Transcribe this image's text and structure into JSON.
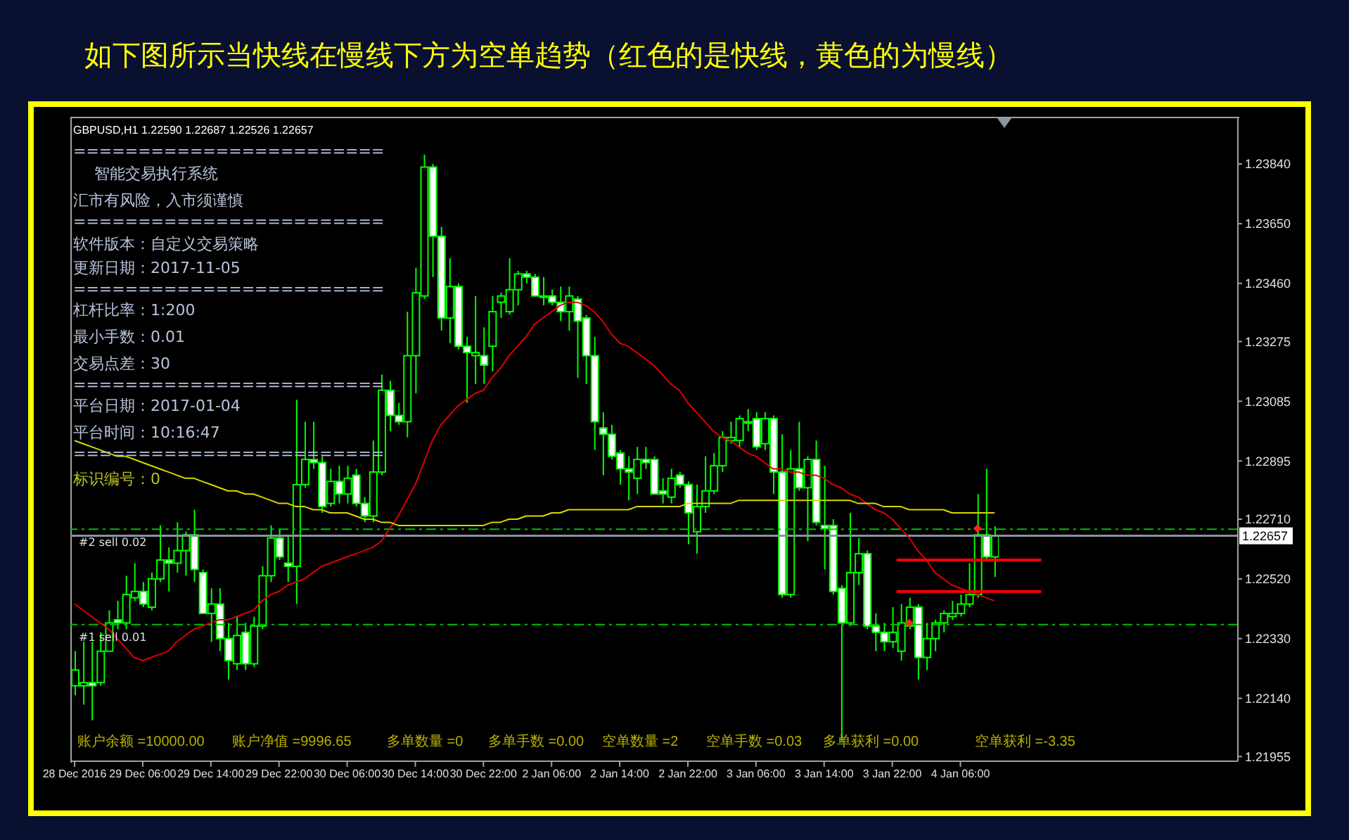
{
  "chart_data": {
    "type": "candlestick",
    "title": "如下图所示当快线在慢线下方为空单趋势（红色的是快线，黄色的为慢线）",
    "categories": [
      "28 Dec 2016",
      null,
      null,
      null,
      null,
      null,
      null,
      null,
      "29 Dec 06:00",
      null,
      null,
      null,
      null,
      null,
      null,
      null,
      "29 Dec 14:00",
      null,
      null,
      null,
      null,
      null,
      null,
      null,
      "29 Dec 22:00",
      null,
      null,
      null,
      null,
      null,
      null,
      null,
      "30 Dec 06:00",
      null,
      null,
      null,
      null,
      null,
      null,
      null,
      "30 Dec 14:00",
      null,
      null,
      null,
      null,
      null,
      null,
      null,
      "30 Dec 22:00",
      null,
      null,
      null,
      null,
      null,
      null,
      null,
      "2 Jan 06:00",
      null,
      null,
      null,
      null,
      null,
      null,
      null,
      "2 Jan 14:00",
      null,
      null,
      null,
      null,
      null,
      null,
      null,
      "2 Jan 22:00",
      null,
      null,
      null,
      null,
      null,
      null,
      null,
      "3 Jan 06:00",
      null,
      null,
      null,
      null,
      null,
      null,
      null,
      "3 Jan 14:00",
      null,
      null,
      null,
      null,
      null,
      null,
      null,
      "3 Jan 22:00",
      null,
      null,
      null,
      null,
      null,
      null,
      null,
      "4 Jan 06:00",
      null,
      null,
      null,
      null
    ],
    "color": "#00ff00",
    "ohlc": [
      [
        1.2218,
        1.2229,
        1.2215,
        1.2223
      ],
      [
        1.2218,
        1.2232,
        1.2212,
        1.2219
      ],
      [
        1.2219,
        1.2232,
        1.2207,
        1.2218
      ],
      [
        1.2219,
        1.2235,
        1.2218,
        1.2229
      ],
      [
        1.2229,
        1.2242,
        1.2229,
        1.2238
      ],
      [
        1.2239,
        1.2245,
        1.2236,
        1.2238
      ],
      [
        1.2238,
        1.2253,
        1.2236,
        1.2247
      ],
      [
        1.2246,
        1.2257,
        1.2245,
        1.2248
      ],
      [
        1.2248,
        1.2251,
        1.2243,
        1.2244
      ],
      [
        1.2243,
        1.2254,
        1.2242,
        1.2252
      ],
      [
        1.2252,
        1.2269,
        1.2251,
        1.2258
      ],
      [
        1.2258,
        1.2262,
        1.2248,
        1.2257
      ],
      [
        1.2257,
        1.227,
        1.2254,
        1.2261
      ],
      [
        1.2261,
        1.2267,
        1.2253,
        1.2266
      ],
      [
        1.2266,
        1.2274,
        1.2251,
        1.2255
      ],
      [
        1.2254,
        1.2255,
        1.2241,
        1.2241
      ],
      [
        1.2241,
        1.2249,
        1.2232,
        1.2244
      ],
      [
        1.2244,
        1.2249,
        1.2229,
        1.2233
      ],
      [
        1.2233,
        1.2238,
        1.222,
        1.2226
      ],
      [
        1.2225,
        1.224,
        1.2223,
        1.2234
      ],
      [
        1.2235,
        1.2238,
        1.2223,
        1.2225
      ],
      [
        1.2225,
        1.224,
        1.2224,
        1.2237
      ],
      [
        1.2237,
        1.2256,
        1.2236,
        1.2253
      ],
      [
        1.2253,
        1.2269,
        1.2251,
        1.2265
      ],
      [
        1.2265,
        1.2268,
        1.2258,
        1.2259
      ],
      [
        1.2257,
        1.2266,
        1.2251,
        1.2256
      ],
      [
        1.2256,
        1.2309,
        1.2244,
        1.2282
      ],
      [
        1.2282,
        1.2302,
        1.2281,
        1.229
      ],
      [
        1.229,
        1.2302,
        1.2287,
        1.2289
      ],
      [
        1.2289,
        1.2291,
        1.2273,
        1.2275
      ],
      [
        1.2276,
        1.2287,
        1.2275,
        1.2283
      ],
      [
        1.2283,
        1.2288,
        1.2276,
        1.2279
      ],
      [
        1.2279,
        1.2288,
        1.2276,
        1.2284
      ],
      [
        1.2285,
        1.2287,
        1.2275,
        1.2276
      ],
      [
        1.2276,
        1.2278,
        1.227,
        1.2272
      ],
      [
        1.2272,
        1.2296,
        1.227,
        1.2286
      ],
      [
        1.2286,
        1.2317,
        1.2285,
        1.2312
      ],
      [
        1.2312,
        1.2315,
        1.2299,
        1.2304
      ],
      [
        1.2304,
        1.2308,
        1.2301,
        1.2302
      ],
      [
        1.2302,
        1.2337,
        1.2297,
        1.2323
      ],
      [
        1.2323,
        1.2351,
        1.2311,
        1.2343
      ],
      [
        1.2342,
        1.2387,
        1.2341,
        1.2383
      ],
      [
        1.2383,
        1.2384,
        1.2348,
        1.2361
      ],
      [
        1.2361,
        1.2364,
        1.2331,
        1.2335
      ],
      [
        1.2335,
        1.2354,
        1.2327,
        1.2345
      ],
      [
        1.2345,
        1.2346,
        1.2325,
        1.2326
      ],
      [
        1.2326,
        1.2329,
        1.2308,
        1.2324
      ],
      [
        1.2323,
        1.2342,
        1.2314,
        1.2324
      ],
      [
        1.2323,
        1.2332,
        1.2314,
        1.232
      ],
      [
        1.2326,
        1.2342,
        1.2318,
        1.2337
      ],
      [
        1.234,
        1.2343,
        1.2335,
        1.2342
      ],
      [
        1.2337,
        1.2354,
        1.2336,
        1.2344
      ],
      [
        1.2344,
        1.235,
        1.2339,
        1.2349
      ],
      [
        1.2349,
        1.235,
        1.2346,
        1.2348
      ],
      [
        1.2348,
        1.2349,
        1.2342,
        1.2342
      ],
      [
        1.2342,
        1.2348,
        1.2339,
        1.2342
      ],
      [
        1.2342,
        1.2344,
        1.2339,
        1.234
      ],
      [
        1.234,
        1.2345,
        1.2334,
        1.2337
      ],
      [
        1.2337,
        1.2345,
        1.2331,
        1.2342
      ],
      [
        1.2341,
        1.2342,
        1.2316,
        1.2334
      ],
      [
        1.2335,
        1.2336,
        1.2314,
        1.2323
      ],
      [
        1.2323,
        1.2329,
        1.2293,
        1.2302
      ],
      [
        1.23,
        1.2305,
        1.2285,
        1.2298
      ],
      [
        1.2298,
        1.2301,
        1.229,
        1.2291
      ],
      [
        1.2292,
        1.2293,
        1.2282,
        1.2287
      ],
      [
        1.2287,
        1.2291,
        1.2277,
        1.2286
      ],
      [
        1.2284,
        1.2294,
        1.2279,
        1.229
      ],
      [
        1.229,
        1.2294,
        1.2287,
        1.2289
      ],
      [
        1.229,
        1.2291,
        1.2279,
        1.2279
      ],
      [
        1.228,
        1.2284,
        1.2276,
        1.2279
      ],
      [
        1.2278,
        1.2287,
        1.2276,
        1.2284
      ],
      [
        1.2285,
        1.2286,
        1.2281,
        1.2282
      ],
      [
        1.2282,
        1.2283,
        1.2263,
        1.2273
      ],
      [
        1.2267,
        1.2282,
        1.226,
        1.2275
      ],
      [
        1.2275,
        1.2291,
        1.2273,
        1.228
      ],
      [
        1.228,
        1.2292,
        1.2279,
        1.2288
      ],
      [
        1.2288,
        1.2299,
        1.2286,
        1.2297
      ],
      [
        1.2296,
        1.2302,
        1.2295,
        1.2297
      ],
      [
        1.2296,
        1.2304,
        1.2294,
        1.2303
      ],
      [
        1.2302,
        1.2306,
        1.2299,
        1.2302
      ],
      [
        1.2303,
        1.2305,
        1.2293,
        1.2294
      ],
      [
        1.2295,
        1.2305,
        1.2293,
        1.2303
      ],
      [
        1.2303,
        1.2304,
        1.2279,
        1.2286
      ],
      [
        1.2286,
        1.2298,
        1.2246,
        1.2247
      ],
      [
        1.2247,
        1.2293,
        1.2246,
        1.2287
      ],
      [
        1.2287,
        1.2302,
        1.228,
        1.2281
      ],
      [
        1.2281,
        1.2291,
        1.2264,
        1.229
      ],
      [
        1.229,
        1.2296,
        1.2269,
        1.227
      ],
      [
        1.2269,
        1.2288,
        1.2255,
        1.2268
      ],
      [
        1.2269,
        1.2271,
        1.2247,
        1.2248
      ],
      [
        1.2249,
        1.225,
        1.22,
        1.2238
      ],
      [
        1.2238,
        1.2273,
        1.2237,
        1.2254
      ],
      [
        1.2254,
        1.2265,
        1.225,
        1.226
      ],
      [
        1.226,
        1.2261,
        1.2236,
        1.2237
      ],
      [
        1.2237,
        1.2241,
        1.2229,
        1.2235
      ],
      [
        1.2235,
        1.2238,
        1.2229,
        1.2232
      ],
      [
        1.2232,
        1.2243,
        1.223,
        1.2235
      ],
      [
        1.2229,
        1.2244,
        1.2226,
        1.2238
      ],
      [
        1.2237,
        1.2246,
        1.2236,
        1.2243
      ],
      [
        1.2243,
        1.2244,
        1.222,
        1.2227
      ],
      [
        1.2227,
        1.2238,
        1.2223,
        1.2233
      ],
      [
        1.2233,
        1.2239,
        1.2229,
        1.2238
      ],
      [
        1.2238,
        1.2242,
        1.2235,
        1.2241
      ],
      [
        1.224,
        1.2245,
        1.2239,
        1.2241
      ],
      [
        1.2241,
        1.2247,
        1.224,
        1.2244
      ],
      [
        1.2244,
        1.2257,
        1.2243,
        1.2247
      ],
      [
        1.2247,
        1.2279,
        1.2246,
        1.2266
      ],
      [
        1.2266,
        1.2287,
        1.2258,
        1.2259
      ],
      [
        1.2259,
        1.22687,
        1.22526,
        1.22657
      ]
    ],
    "series": [
      {
        "type": "line",
        "color": "#e00000",
        "values": [
          1.2244,
          1.2242,
          1.224,
          1.2238,
          1.2236,
          1.2233,
          1.223,
          1.2227,
          1.2226,
          1.2227,
          1.2228,
          1.2229,
          1.2232,
          1.2234,
          1.2236,
          1.2237,
          1.2238,
          1.2239,
          1.2239,
          1.224,
          1.2241,
          1.2242,
          1.2245,
          1.2247,
          1.2248,
          1.225,
          1.2251,
          1.2252,
          1.2254,
          1.2256,
          1.2257,
          1.2258,
          1.2259,
          1.226,
          1.2261,
          1.2262,
          1.2264,
          1.2268,
          1.2272,
          1.2277,
          1.2282,
          1.2289,
          1.2296,
          1.2301,
          1.2304,
          1.2307,
          1.2309,
          1.2311,
          1.2312,
          1.2316,
          1.2319,
          1.2323,
          1.2326,
          1.2329,
          1.2333,
          1.2335,
          1.2337,
          1.2339,
          1.234,
          1.234,
          1.2339,
          1.2337,
          1.2334,
          1.233,
          1.2327,
          1.2326,
          1.2324,
          1.2322,
          1.232,
          1.2317,
          1.2314,
          1.2312,
          1.2308,
          1.2305,
          1.2302,
          1.2299,
          1.2297,
          1.2296,
          1.2294,
          1.2292,
          1.2291,
          1.2289,
          1.2287,
          1.2287,
          1.2286,
          1.2286,
          1.2285,
          1.2285,
          1.2284,
          1.2282,
          1.2281,
          1.2279,
          1.2278,
          1.2276,
          1.2274,
          1.2273,
          1.2271,
          1.2268,
          1.2265,
          1.2261,
          1.2258,
          1.2254,
          1.2252,
          1.225,
          1.2249,
          1.2248,
          1.2247,
          1.2246,
          1.2245
        ]
      },
      {
        "type": "line",
        "color": "#d8d800",
        "values": [
          1.2296,
          1.2295,
          1.2294,
          1.2293,
          1.2292,
          1.2291,
          1.2291,
          1.229,
          1.2289,
          1.2288,
          1.2287,
          1.2286,
          1.2285,
          1.2284,
          1.2284,
          1.2283,
          1.2282,
          1.2281,
          1.228,
          1.228,
          1.2279,
          1.2279,
          1.2278,
          1.2277,
          1.2276,
          1.2276,
          1.2275,
          1.2275,
          1.2274,
          1.2274,
          1.2273,
          1.2273,
          1.2273,
          1.2272,
          1.2271,
          1.2271,
          1.227,
          1.227,
          1.2269,
          1.2269,
          1.2269,
          1.2269,
          1.2269,
          1.2269,
          1.2269,
          1.2269,
          1.2269,
          1.2269,
          1.2269,
          1.227,
          1.227,
          1.2271,
          1.2271,
          1.2272,
          1.2272,
          1.2272,
          1.2273,
          1.2273,
          1.2274,
          1.2274,
          1.2274,
          1.2274,
          1.2274,
          1.2274,
          1.2274,
          1.2274,
          1.2275,
          1.2275,
          1.2275,
          1.2275,
          1.2275,
          1.2275,
          1.2276,
          1.2276,
          1.2276,
          1.2276,
          1.2276,
          1.2276,
          1.2277,
          1.2277,
          1.2277,
          1.2277,
          1.2277,
          1.2277,
          1.2277,
          1.2277,
          1.2277,
          1.2277,
          1.2277,
          1.2277,
          1.2277,
          1.2277,
          1.2276,
          1.2276,
          1.2276,
          1.2275,
          1.2275,
          1.2275,
          1.2274,
          1.2274,
          1.2274,
          1.2274,
          1.2274,
          1.2273,
          1.2273,
          1.2273,
          1.2273,
          1.2273,
          1.2273
        ]
      },
      {
        "type": "scatter",
        "color": "#ff2020",
        "marker": "diamond",
        "values": [
          null,
          null,
          null,
          null,
          null,
          null,
          null,
          null,
          null,
          null,
          null,
          null,
          null,
          null,
          null,
          null,
          null,
          null,
          null,
          null,
          null,
          null,
          null,
          null,
          null,
          null,
          null,
          null,
          null,
          null,
          null,
          null,
          null,
          null,
          null,
          null,
          null,
          null,
          null,
          null,
          null,
          null,
          null,
          null,
          null,
          null,
          null,
          null,
          null,
          null,
          null,
          null,
          null,
          null,
          null,
          null,
          null,
          null,
          null,
          null,
          null,
          null,
          null,
          null,
          null,
          null,
          null,
          null,
          null,
          null,
          null,
          null,
          null,
          null,
          null,
          null,
          null,
          null,
          null,
          null,
          null,
          null,
          null,
          null,
          null,
          null,
          null,
          null,
          null,
          null,
          null,
          null,
          null,
          null,
          null,
          null,
          null,
          null,
          1.2238,
          null,
          null,
          null,
          null,
          null,
          null,
          null,
          1.2268,
          null,
          null
        ]
      }
    ],
    "ylim": [
      1.2194,
      1.2399
    ],
    "yticks": [
      {
        "value": 1.2384,
        "label": "1.23840"
      },
      {
        "value": 1.2365,
        "label": "1.23650"
      },
      {
        "value": 1.2346,
        "label": "1.23460"
      },
      1.23275,
      1.23085,
      1.22895,
      {
        "value": 1.2271,
        "label": "1.22710"
      },
      {
        "value": 1.2252,
        "label": "1.22520"
      },
      {
        "value": 1.2233,
        "label": "1.22330"
      },
      {
        "value": 1.2214,
        "label": "1.22140"
      },
      1.21955
    ],
    "ref_lines": [
      {
        "axis": "y",
        "value": 1.22678,
        "label": "#2 sell 0.02",
        "color": "#00c000",
        "line_style": "dashed"
      },
      {
        "axis": "y",
        "value": 1.22375,
        "label": "#1 sell 0.01",
        "color": "#00c000",
        "line_style": "dashed"
      },
      {
        "axis": "y",
        "value": 1.22657,
        "label": "1.22657",
        "color": "#8a93a0",
        "line_style": "solid"
      },
      {
        "axis": "y",
        "value": 1.2258,
        "color": "#ff0000",
        "line_style": "solid"
      },
      {
        "axis": "y",
        "value": 1.2248,
        "color": "#ff0000",
        "line_style": "solid"
      }
    ],
    "annotations": [
      "GBPUSD,H1 1.22590 1.22687 1.22526 1.22657",
      "========================",
      "智能交易执行系统",
      "汇市有风险，入市须谨慎",
      "========================",
      "软件版本：自定义交易策略",
      "更新日期：2017-11-05",
      "========================",
      "杠杆比率：1:200",
      "最小手数：0.01",
      "交易点差：30",
      "========================",
      "平台日期：2017-01-04",
      "平台时间：10:16:47",
      "========================",
      "标识编号：0",
      "账户余额 =10000.00",
      "账户净值 =9996.65",
      "多单数量 =0",
      "多单手数 =0.00",
      "空单数量 =2",
      "空单手数 =0.03",
      "多单获利 =0.00",
      "空单获利 =-3.35"
    ]
  }
}
